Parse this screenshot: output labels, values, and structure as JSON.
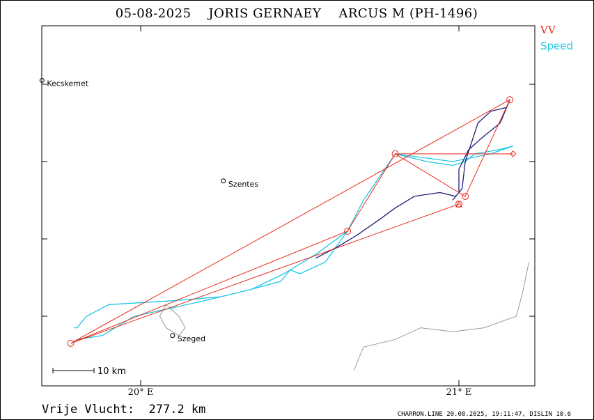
{
  "title": "05-08-2025    JORIS GERNAEY    ARCUS M (PH-1496)",
  "legend": {
    "vv_label": "VV",
    "speed_label": "Speed"
  },
  "colors": {
    "task": "#e8281a",
    "speed_track": "#1ec8e6",
    "track": "#1e1e78",
    "border": "#9a9a9a"
  },
  "cities": [
    {
      "name": "Kecskemet",
      "lon": 19.69,
      "lat": 46.91
    },
    {
      "name": "Szentes",
      "lon": 20.26,
      "lat": 46.65
    },
    {
      "name": "Szeged",
      "lon": 20.1,
      "lat": 46.25
    }
  ],
  "axis": {
    "x_ticks": [
      {
        "lon": 20.0,
        "label": "20° E"
      },
      {
        "lon": 21.0,
        "label": "21° E"
      }
    ],
    "y_tick_lats": [
      46.3,
      46.5,
      46.7,
      46.9
    ]
  },
  "scale_bar_label": "10 km",
  "distance_label": "Vrije Vlucht:  277.2 km",
  "footer": "CHARRON.LINE 20.08.2025, 19:11:47, DISLIN 10.6",
  "task_points": [
    {
      "lon": 19.78,
      "lat": 46.23
    },
    {
      "lon": 21.16,
      "lat": 46.86
    },
    {
      "lon": 21.02,
      "lat": 46.61
    },
    {
      "lon": 20.8,
      "lat": 46.72
    },
    {
      "lon": 20.65,
      "lat": 46.52
    },
    {
      "lon": 19.78,
      "lat": 46.23
    },
    {
      "lon": 21.0,
      "lat": 46.59
    }
  ],
  "task_extra": [
    {
      "lon": 20.8,
      "lat": 46.72
    },
    {
      "lon": 21.17,
      "lat": 46.72
    }
  ],
  "start_marker": {
    "lon": 21.0,
    "lat": 46.59
  },
  "finish_marker": {
    "lon": 21.17,
    "lat": 46.72
  },
  "speed_track": [
    [
      19.79,
      46.27
    ],
    [
      19.8,
      46.27
    ],
    [
      19.83,
      46.3
    ],
    [
      19.9,
      46.33
    ],
    [
      20.1,
      46.34
    ],
    [
      20.25,
      46.35
    ],
    [
      20.35,
      46.37
    ],
    [
      20.44,
      46.39
    ],
    [
      20.47,
      46.42
    ],
    [
      20.5,
      46.41
    ],
    [
      20.58,
      46.44
    ],
    [
      20.65,
      46.52
    ],
    [
      20.7,
      46.6
    ],
    [
      20.8,
      46.72
    ],
    [
      20.9,
      46.7
    ],
    [
      20.98,
      46.69
    ],
    [
      21.02,
      46.7
    ],
    [
      21.05,
      46.72
    ],
    [
      21.12,
      46.73
    ],
    [
      21.17,
      46.74
    ],
    [
      21.1,
      46.72
    ],
    [
      20.98,
      46.7
    ],
    [
      20.8,
      46.72
    ],
    [
      20.7,
      46.6
    ],
    [
      20.65,
      46.52
    ],
    [
      20.55,
      46.46
    ],
    [
      20.45,
      46.41
    ],
    [
      20.35,
      46.37
    ],
    [
      20.2,
      46.34
    ],
    [
      19.98,
      46.3
    ],
    [
      19.88,
      46.25
    ],
    [
      19.8,
      46.24
    ]
  ],
  "track": [
    [
      20.55,
      46.45
    ],
    [
      20.62,
      46.48
    ],
    [
      20.68,
      46.51
    ],
    [
      20.75,
      46.55
    ],
    [
      20.8,
      46.58
    ],
    [
      20.86,
      46.61
    ],
    [
      20.94,
      46.62
    ],
    [
      20.99,
      46.61
    ],
    [
      21.01,
      46.63
    ],
    [
      21.02,
      46.7
    ],
    [
      21.04,
      46.75
    ],
    [
      21.06,
      46.8
    ],
    [
      21.1,
      46.83
    ],
    [
      21.15,
      46.84
    ],
    [
      21.16,
      46.86
    ],
    [
      21.13,
      46.8
    ],
    [
      21.07,
      46.76
    ],
    [
      21.03,
      46.73
    ],
    [
      21.0,
      46.68
    ],
    [
      21.0,
      46.62
    ],
    [
      20.98,
      46.6
    ]
  ],
  "border_lines": [
    [
      [
        21.22,
        46.44
      ],
      [
        21.2,
        46.36
      ],
      [
        21.18,
        46.3
      ],
      [
        21.08,
        46.27
      ],
      [
        20.98,
        46.26
      ],
      [
        20.88,
        46.27
      ],
      [
        20.8,
        46.24
      ],
      [
        20.7,
        46.22
      ],
      [
        20.67,
        46.16
      ]
    ],
    [
      [
        20.08,
        46.33
      ],
      [
        20.12,
        46.3
      ],
      [
        20.14,
        46.27
      ],
      [
        20.12,
        46.25
      ],
      [
        20.08,
        46.27
      ],
      [
        20.06,
        46.3
      ],
      [
        20.08,
        46.33
      ]
    ]
  ]
}
